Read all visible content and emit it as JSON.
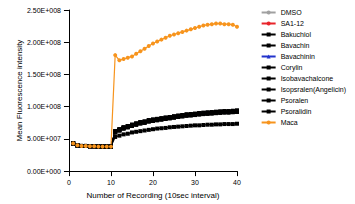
{
  "chart_data": {
    "type": "line",
    "xlabel": "Number of Recording (10sec interval)",
    "ylabel": "Mean Fluorescence intensity",
    "x": [
      1,
      2,
      3,
      4,
      5,
      6,
      7,
      8,
      9,
      10,
      11,
      12,
      13,
      14,
      15,
      16,
      17,
      18,
      19,
      20,
      21,
      22,
      23,
      24,
      25,
      26,
      27,
      28,
      29,
      30,
      31,
      32,
      33,
      34,
      35,
      36,
      37,
      38,
      39,
      40
    ],
    "xlim": [
      0,
      40
    ],
    "xticks": [
      0,
      10,
      20,
      30,
      40
    ],
    "ylim": [
      0,
      250000000
    ],
    "yticks": [
      {
        "value": 0,
        "label": "0.00E+000"
      },
      {
        "value": 50000000,
        "label": "5.00E+007"
      },
      {
        "value": 100000000,
        "label": "1.00E+008"
      },
      {
        "value": 150000000,
        "label": "1.50E+008"
      },
      {
        "value": 200000000,
        "label": "2.00E+008"
      },
      {
        "value": 250000000,
        "label": "2.50E+008"
      }
    ],
    "grid": false,
    "legend": "right",
    "series": [
      {
        "name": "DMSO",
        "color": "#a0a0a0",
        "marker": "circle",
        "values": [
          43000000.0,
          40000000.0,
          39000000.0,
          39000000.0,
          38500000.0,
          38500000.0,
          38000000.0,
          38000000.0,
          38000000.0,
          38000000.0,
          60000000.0,
          63000000.0,
          66000000.0,
          68000000.0,
          70000000.0,
          72000000.0,
          74000000.0,
          75000000.0,
          77000000.0,
          78000000.0,
          79000000.0,
          80000000.0,
          81000000.0,
          82000000.0,
          83000000.0,
          84000000.0,
          85000000.0,
          86000000.0,
          86500000.0,
          87000000.0,
          88000000.0,
          88500000.0,
          89000000.0,
          89500000.0,
          90000000.0,
          90500000.0,
          91000000.0,
          91000000.0,
          91500000.0,
          92000000.0
        ]
      },
      {
        "name": "SA1-12",
        "color": "#e8242a",
        "marker": "circle",
        "values": [
          43000000.0,
          40000000.0,
          39000000.0,
          39000000.0,
          38500000.0,
          38500000.0,
          38000000.0,
          38000000.0,
          38000000.0,
          38000000.0,
          61000000.0,
          64000000.0,
          67000000.0,
          69000000.0,
          71000000.0,
          73000000.0,
          75000000.0,
          76000000.0,
          78000000.0,
          79000000.0,
          80000000.0,
          81000000.0,
          82000000.0,
          83000000.0,
          84000000.0,
          85000000.0,
          86000000.0,
          87000000.0,
          87500000.0,
          88000000.0,
          89000000.0,
          89500000.0,
          90000000.0,
          90500000.0,
          91000000.0,
          91500000.0,
          92000000.0,
          92000000.0,
          92500000.0,
          93000000.0
        ]
      },
      {
        "name": "Bakuchiol",
        "color": "#000000",
        "marker": "square",
        "values": [
          43000000.0,
          40000000.0,
          39000000.0,
          39000000.0,
          38500000.0,
          38500000.0,
          38000000.0,
          38000000.0,
          38000000.0,
          38000000.0,
          61000000.0,
          64000000.0,
          67000000.0,
          69000000.0,
          71000000.0,
          73000000.0,
          75000000.0,
          76000000.0,
          78000000.0,
          79000000.0,
          80000000.0,
          81000000.0,
          82000000.0,
          83000000.0,
          84000000.0,
          85000000.0,
          86000000.0,
          87000000.0,
          87500000.0,
          88000000.0,
          89000000.0,
          89500000.0,
          90000000.0,
          90500000.0,
          91000000.0,
          91500000.0,
          92000000.0,
          92000000.0,
          92500000.0,
          93000000.0
        ]
      },
      {
        "name": "Bavachin",
        "color": "#000000",
        "marker": "square",
        "values": [
          43000000.0,
          40000000.0,
          39000000.0,
          39000000.0,
          38500000.0,
          38500000.0,
          38000000.0,
          38000000.0,
          38000000.0,
          38000000.0,
          60000000.0,
          63000000.0,
          66000000.0,
          68000000.0,
          70000000.0,
          72000000.0,
          74000000.0,
          75000000.0,
          77000000.0,
          78000000.0,
          79000000.0,
          80000000.0,
          81000000.0,
          82000000.0,
          83000000.0,
          84000000.0,
          85000000.0,
          86000000.0,
          86500000.0,
          87000000.0,
          88000000.0,
          88500000.0,
          89000000.0,
          89500000.0,
          90000000.0,
          90500000.0,
          91000000.0,
          91000000.0,
          91500000.0,
          92000000.0
        ]
      },
      {
        "name": "Bavachinin",
        "color": "#2233cc",
        "marker": "triangle",
        "values": [
          43000000.0,
          40000000.0,
          39000000.0,
          39000000.0,
          38500000.0,
          38500000.0,
          38000000.0,
          38000000.0,
          38000000.0,
          38000000.0,
          62000000.0,
          65000000.0,
          68000000.0,
          70000000.0,
          72000000.0,
          74000000.0,
          76000000.0,
          77000000.0,
          79000000.0,
          80000000.0,
          81000000.0,
          82000000.0,
          83000000.0,
          84000000.0,
          85000000.0,
          86000000.0,
          87000000.0,
          88000000.0,
          88500000.0,
          89000000.0,
          90000000.0,
          90500000.0,
          91000000.0,
          91500000.0,
          92000000.0,
          92500000.0,
          93000000.0,
          93000000.0,
          93500000.0,
          94000000.0
        ]
      },
      {
        "name": "Corylin",
        "color": "#000000",
        "marker": "square",
        "values": [
          43000000.0,
          40000000.0,
          39000000.0,
          39000000.0,
          38500000.0,
          38500000.0,
          38000000.0,
          38000000.0,
          38000000.0,
          38000000.0,
          62000000.0,
          65000000.0,
          68000000.0,
          70000000.0,
          72000000.0,
          74000000.0,
          76000000.0,
          77000000.0,
          79000000.0,
          80000000.0,
          81000000.0,
          82000000.0,
          83000000.0,
          84000000.0,
          85000000.0,
          86000000.0,
          87000000.0,
          88000000.0,
          88500000.0,
          89000000.0,
          90000000.0,
          90500000.0,
          91000000.0,
          91500000.0,
          92000000.0,
          92500000.0,
          93000000.0,
          93000000.0,
          93500000.0,
          94000000.0
        ]
      },
      {
        "name": "Isobavachalcone",
        "color": "#000000",
        "marker": "square",
        "values": [
          43000000.0,
          40000000.0,
          39000000.0,
          39000000.0,
          38500000.0,
          38500000.0,
          38000000.0,
          38000000.0,
          38000000.0,
          38000000.0,
          61000000.0,
          64000000.0,
          67000000.0,
          69000000.0,
          71000000.0,
          73000000.0,
          75000000.0,
          76000000.0,
          78000000.0,
          79000000.0,
          80000000.0,
          81000000.0,
          82000000.0,
          83000000.0,
          84000000.0,
          85000000.0,
          86000000.0,
          87000000.0,
          87500000.0,
          88000000.0,
          89000000.0,
          89500000.0,
          90000000.0,
          90500000.0,
          91000000.0,
          91500000.0,
          92000000.0,
          92000000.0,
          92500000.0,
          93000000.0
        ]
      },
      {
        "name": "Isopsralen(Angelicin)",
        "color": "#000000",
        "marker": "square",
        "values": [
          43000000.0,
          40000000.0,
          39000000.0,
          39000000.0,
          38500000.0,
          38500000.0,
          38000000.0,
          38000000.0,
          38000000.0,
          38000000.0,
          60000000.0,
          63000000.0,
          66000000.0,
          68000000.0,
          70000000.0,
          72000000.0,
          74000000.0,
          75000000.0,
          77000000.0,
          78000000.0,
          79000000.0,
          80000000.0,
          81000000.0,
          82000000.0,
          83000000.0,
          84000000.0,
          85000000.0,
          86000000.0,
          86500000.0,
          87000000.0,
          88000000.0,
          88500000.0,
          89000000.0,
          89500000.0,
          90000000.0,
          90500000.0,
          91000000.0,
          91000000.0,
          91500000.0,
          92000000.0
        ]
      },
      {
        "name": "Psoralen",
        "color": "#000000",
        "marker": "square",
        "values": [
          43000000.0,
          40000000.0,
          39000000.0,
          39000000.0,
          38500000.0,
          38500000.0,
          38000000.0,
          38000000.0,
          38000000.0,
          38000000.0,
          62000000.0,
          65000000.0,
          68000000.0,
          70000000.0,
          72000000.0,
          74000000.0,
          76000000.0,
          77000000.0,
          79000000.0,
          80000000.0,
          81000000.0,
          82000000.0,
          83000000.0,
          84000000.0,
          85000000.0,
          86000000.0,
          87000000.0,
          88000000.0,
          88500000.0,
          89000000.0,
          90000000.0,
          90500000.0,
          91000000.0,
          91500000.0,
          92000000.0,
          92500000.0,
          93000000.0,
          93000000.0,
          93500000.0,
          94000000.0
        ]
      },
      {
        "name": "Psoralidin",
        "color": "#000000",
        "marker": "square",
        "values": [
          43000000.0,
          40000000.0,
          39000000.0,
          39000000.0,
          38500000.0,
          38500000.0,
          38000000.0,
          38000000.0,
          38000000.0,
          38000000.0,
          53000000.0,
          55000000.0,
          57000000.0,
          58000000.0,
          60000000.0,
          61000000.0,
          62000000.0,
          63000000.0,
          64000000.0,
          65000000.0,
          66000000.0,
          66500000.0,
          67000000.0,
          68000000.0,
          68500000.0,
          69000000.0,
          69500000.0,
          70000000.0,
          70500000.0,
          71000000.0,
          71000000.0,
          71500000.0,
          72000000.0,
          72000000.0,
          72500000.0,
          72500000.0,
          73000000.0,
          73000000.0,
          73000000.0,
          73500000.0
        ]
      },
      {
        "name": "Maca",
        "color": "#f7941d",
        "marker": "circle",
        "values": [
          43000000.0,
          40000000.0,
          39000000.0,
          39000000.0,
          38500000.0,
          38500000.0,
          38000000.0,
          38000000.0,
          38000000.0,
          38000000.0,
          180000000.0,
          172000000.0,
          174000000.0,
          176000000.0,
          178000000.0,
          182000000.0,
          186000000.0,
          190000000.0,
          194000000.0,
          198000000.0,
          201000000.0,
          204000000.0,
          207000000.0,
          210000000.0,
          212000000.0,
          214000000.0,
          216000000.0,
          218000000.0,
          220000000.0,
          222000000.0,
          224000000.0,
          226000000.0,
          227000000.0,
          228000000.0,
          229000000.0,
          229000000.0,
          228000000.0,
          228000000.0,
          227000000.0,
          224000000.0
        ]
      }
    ]
  }
}
